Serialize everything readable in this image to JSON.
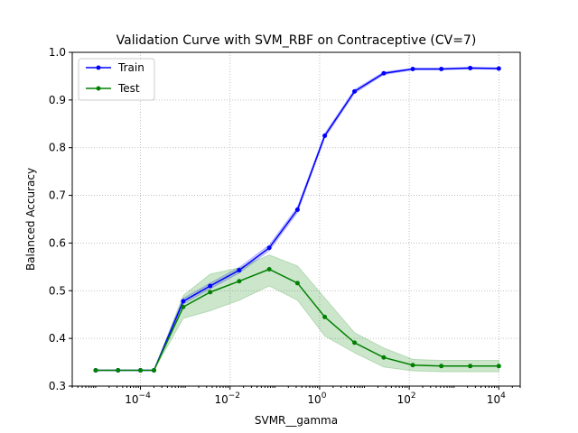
{
  "chart_data": {
    "type": "line",
    "title": "Validation Curve with SVM_RBF on Contraceptive (CV=7)",
    "xlabel": "SVMR__gamma",
    "ylabel": "Balanced Accuracy",
    "xscale": "log",
    "xlim": [
      3e-06,
      30000.0
    ],
    "ylim": [
      0.3,
      1.0
    ],
    "grid": true,
    "legend_position": "top-left",
    "x_ticks": [
      {
        "value": 0.0001,
        "base": "10",
        "exp": "−4"
      },
      {
        "value": 0.01,
        "base": "10",
        "exp": "−2"
      },
      {
        "value": 1,
        "base": "10",
        "exp": "0"
      },
      {
        "value": 100,
        "base": "10",
        "exp": "2"
      },
      {
        "value": 10000,
        "base": "10",
        "exp": "4"
      }
    ],
    "y_ticks": [
      {
        "value": 0.3,
        "label": "0.3"
      },
      {
        "value": 0.4,
        "label": "0.4"
      },
      {
        "value": 0.5,
        "label": "0.5"
      },
      {
        "value": 0.6,
        "label": "0.6"
      },
      {
        "value": 0.7,
        "label": "0.7"
      },
      {
        "value": 0.8,
        "label": "0.8"
      },
      {
        "value": 0.9,
        "label": "0.9"
      },
      {
        "value": 1.0,
        "label": "1.0"
      }
    ],
    "x": [
      1e-05,
      3.16e-05,
      0.0001,
      0.0002,
      0.0009,
      0.0036,
      0.016,
      0.075,
      0.32,
      1.3,
      6.0,
      27,
      120,
      520,
      2300,
      10000
    ],
    "series": [
      {
        "name": "Train",
        "color": "#0000ff",
        "band_color": "#0000ff",
        "band_opacity": 0.2,
        "values": [
          0.333,
          0.333,
          0.333,
          0.333,
          0.478,
          0.51,
          0.543,
          0.59,
          0.67,
          0.825,
          0.918,
          0.956,
          0.965,
          0.965,
          0.967,
          0.966
        ],
        "lower": [
          0.333,
          0.333,
          0.333,
          0.333,
          0.472,
          0.504,
          0.537,
          0.584,
          0.664,
          0.82,
          0.914,
          0.953,
          0.963,
          0.963,
          0.965,
          0.964
        ],
        "upper": [
          0.333,
          0.333,
          0.333,
          0.333,
          0.484,
          0.516,
          0.549,
          0.596,
          0.676,
          0.83,
          0.922,
          0.959,
          0.967,
          0.967,
          0.969,
          0.968
        ]
      },
      {
        "name": "Test",
        "color": "#008000",
        "band_color": "#008000",
        "band_opacity": 0.2,
        "values": [
          0.333,
          0.333,
          0.333,
          0.333,
          0.466,
          0.497,
          0.52,
          0.545,
          0.516,
          0.445,
          0.391,
          0.36,
          0.344,
          0.342,
          0.342,
          0.342
        ],
        "lower": [
          0.333,
          0.333,
          0.333,
          0.333,
          0.442,
          0.458,
          0.48,
          0.51,
          0.48,
          0.405,
          0.37,
          0.34,
          0.332,
          0.33,
          0.33,
          0.33
        ],
        "upper": [
          0.333,
          0.333,
          0.333,
          0.333,
          0.49,
          0.535,
          0.548,
          0.575,
          0.552,
          0.485,
          0.412,
          0.38,
          0.356,
          0.354,
          0.354,
          0.354
        ]
      }
    ]
  }
}
